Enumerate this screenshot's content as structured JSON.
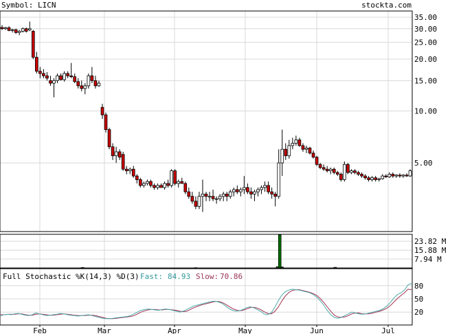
{
  "header": {
    "symbol_label": "Symbol: LICN",
    "brand": "stockta.com"
  },
  "colors": {
    "background": "#ffffff",
    "grid": "#d8d8d8",
    "frame": "#000000",
    "up_candle_fill": "#ffffff",
    "down_candle_fill": "#cc0000",
    "volume_bar": "#006600",
    "fast_line": "#4aa8a8",
    "slow_line": "#a03050",
    "fast_label": "#339999",
    "slow_label": "#993355"
  },
  "chart_data": [
    {
      "type": "candlestick",
      "title": "",
      "scale": "log",
      "ylim": [
        2.0,
        38.0
      ],
      "y_ticks": [
        35,
        30,
        25,
        20,
        15,
        10,
        5
      ],
      "y_tick_labels": [
        "35.00",
        "30.00",
        "25.00",
        "20.00",
        "15.00",
        "10.00",
        "5.00"
      ],
      "x_labels": [
        "Feb",
        "Mar",
        "Apr",
        "May",
        "Jun",
        "Jul"
      ],
      "grid": true,
      "candles": [
        [
          30.5,
          31.5,
          29.5,
          30.0
        ],
        [
          30.0,
          30.8,
          29.5,
          30.4
        ],
        [
          30.4,
          31.0,
          29.0,
          29.3
        ],
        [
          29.3,
          30.0,
          28.5,
          29.6
        ],
        [
          29.6,
          30.0,
          28.0,
          28.5
        ],
        [
          28.5,
          29.5,
          27.5,
          29.0
        ],
        [
          29.0,
          30.5,
          28.5,
          30.0
        ],
        [
          30.0,
          30.5,
          28.5,
          29.0
        ],
        [
          29.5,
          33.0,
          29.0,
          30.0
        ],
        [
          29.0,
          29.5,
          20.0,
          20.5
        ],
        [
          20.5,
          22.0,
          16.5,
          17.0
        ],
        [
          17.0,
          18.0,
          15.5,
          16.5
        ],
        [
          16.5,
          17.5,
          15.5,
          16.0
        ],
        [
          16.0,
          16.8,
          15.0,
          15.5
        ],
        [
          15.0,
          16.0,
          14.0,
          14.5
        ],
        [
          14.5,
          15.5,
          12.0,
          15.0
        ],
        [
          15.0,
          16.5,
          14.5,
          16.0
        ],
        [
          16.0,
          16.5,
          15.0,
          15.2
        ],
        [
          15.2,
          17.0,
          14.8,
          16.5
        ],
        [
          16.5,
          17.0,
          15.5,
          16.0
        ],
        [
          16.0,
          19.0,
          15.5,
          15.8
        ],
        [
          15.8,
          16.5,
          14.5,
          14.8
        ],
        [
          14.8,
          15.5,
          13.5,
          14.0
        ],
        [
          14.0,
          15.0,
          13.0,
          13.5
        ],
        [
          13.5,
          14.5,
          12.5,
          14.0
        ],
        [
          14.0,
          16.5,
          13.5,
          16.0
        ],
        [
          16.0,
          18.0,
          14.5,
          15.0
        ],
        [
          15.0,
          16.0,
          13.5,
          14.0
        ],
        [
          14.0,
          15.0,
          13.8,
          14.5
        ],
        [
          10.5,
          11.0,
          9.0,
          9.5
        ],
        [
          9.5,
          9.8,
          7.5,
          7.8
        ],
        [
          7.8,
          8.0,
          6.0,
          6.2
        ],
        [
          6.2,
          6.5,
          5.2,
          5.5
        ],
        [
          5.5,
          6.2,
          5.0,
          5.8
        ],
        [
          5.8,
          6.0,
          5.2,
          5.4
        ],
        [
          5.6,
          5.8,
          4.5,
          4.6
        ],
        [
          4.6,
          4.8,
          4.3,
          4.5
        ],
        [
          4.5,
          4.7,
          4.3,
          4.6
        ],
        [
          4.6,
          4.8,
          4.1,
          4.2
        ],
        [
          4.2,
          4.3,
          3.8,
          4.0
        ],
        [
          4.0,
          4.1,
          3.6,
          3.7
        ],
        [
          3.7,
          3.9,
          3.6,
          3.8
        ],
        [
          3.8,
          4.0,
          3.7,
          3.9
        ],
        [
          3.9,
          4.0,
          3.6,
          3.7
        ],
        [
          3.7,
          3.8,
          3.5,
          3.6
        ],
        [
          3.6,
          3.8,
          3.5,
          3.7
        ],
        [
          3.7,
          3.8,
          3.6,
          3.6
        ],
        [
          3.6,
          3.9,
          3.5,
          3.8
        ],
        [
          3.8,
          4.0,
          3.6,
          3.7
        ],
        [
          3.7,
          4.6,
          3.6,
          4.5
        ],
        [
          4.5,
          4.6,
          3.7,
          3.8
        ],
        [
          3.8,
          4.0,
          3.6,
          3.9
        ],
        [
          3.9,
          4.1,
          3.8,
          3.8
        ],
        [
          3.8,
          3.9,
          3.3,
          3.4
        ],
        [
          3.4,
          3.6,
          3.1,
          3.2
        ],
        [
          3.2,
          3.4,
          2.9,
          3.0
        ],
        [
          3.0,
          3.2,
          2.7,
          2.8
        ],
        [
          2.8,
          3.4,
          2.7,
          3.2
        ],
        [
          3.2,
          4.0,
          2.6,
          3.3
        ],
        [
          3.3,
          3.4,
          3.0,
          3.2
        ],
        [
          3.2,
          3.4,
          3.0,
          3.2
        ],
        [
          3.2,
          3.5,
          3.0,
          3.1
        ],
        [
          3.1,
          3.2,
          2.9,
          3.1
        ],
        [
          3.1,
          3.3,
          3.0,
          3.2
        ],
        [
          3.2,
          3.4,
          3.0,
          3.3
        ],
        [
          3.3,
          3.4,
          3.0,
          3.2
        ],
        [
          3.2,
          3.5,
          3.1,
          3.4
        ],
        [
          3.4,
          3.6,
          3.2,
          3.5
        ],
        [
          3.5,
          3.7,
          3.3,
          3.4
        ],
        [
          3.4,
          3.6,
          3.2,
          3.5
        ],
        [
          3.5,
          4.2,
          3.3,
          3.6
        ],
        [
          3.6,
          3.8,
          3.3,
          3.4
        ],
        [
          3.4,
          3.6,
          3.1,
          3.3
        ],
        [
          3.3,
          3.5,
          3.0,
          3.4
        ],
        [
          3.4,
          3.6,
          3.2,
          3.5
        ],
        [
          3.5,
          3.7,
          3.3,
          3.6
        ],
        [
          3.6,
          3.9,
          3.4,
          3.7
        ],
        [
          3.7,
          3.9,
          3.3,
          3.4
        ],
        [
          3.4,
          3.6,
          3.1,
          3.3
        ],
        [
          3.3,
          3.4,
          2.8,
          3.2
        ],
        [
          3.2,
          6.0,
          3.1,
          5.0
        ],
        [
          5.0,
          7.8,
          4.2,
          6.0
        ],
        [
          6.0,
          6.5,
          5.2,
          5.5
        ],
        [
          5.5,
          6.8,
          5.3,
          6.3
        ],
        [
          6.3,
          7.0,
          6.0,
          6.5
        ],
        [
          6.5,
          7.2,
          6.3,
          6.8
        ],
        [
          6.8,
          7.0,
          6.2,
          6.3
        ],
        [
          6.3,
          6.5,
          5.8,
          6.0
        ],
        [
          6.0,
          6.3,
          5.7,
          6.1
        ],
        [
          6.1,
          6.2,
          5.6,
          5.7
        ],
        [
          5.7,
          5.9,
          5.3,
          5.4
        ],
        [
          5.4,
          5.5,
          4.8,
          4.9
        ],
        [
          4.9,
          5.0,
          4.6,
          4.7
        ],
        [
          4.7,
          4.9,
          4.5,
          4.6
        ],
        [
          4.6,
          4.8,
          4.4,
          4.5
        ],
        [
          4.5,
          4.7,
          4.3,
          4.6
        ],
        [
          4.6,
          4.7,
          4.3,
          4.4
        ],
        [
          4.4,
          4.5,
          4.2,
          4.3
        ],
        [
          4.3,
          4.4,
          3.9,
          4.0
        ],
        [
          4.0,
          5.1,
          3.9,
          4.9
        ],
        [
          4.9,
          5.0,
          4.3,
          4.4
        ],
        [
          4.4,
          4.6,
          4.3,
          4.5
        ],
        [
          4.5,
          4.6,
          4.3,
          4.4
        ],
        [
          4.4,
          4.5,
          4.2,
          4.3
        ],
        [
          4.3,
          4.4,
          4.1,
          4.2
        ],
        [
          4.2,
          4.3,
          4.0,
          4.1
        ],
        [
          4.1,
          4.2,
          3.9,
          4.0
        ],
        [
          4.0,
          4.2,
          3.9,
          4.1
        ],
        [
          4.1,
          4.2,
          3.9,
          4.0
        ],
        [
          4.0,
          4.1,
          3.9,
          4.05
        ],
        [
          4.05,
          4.3,
          4.0,
          4.2
        ],
        [
          4.2,
          4.3,
          4.1,
          4.15
        ],
        [
          4.15,
          4.4,
          4.1,
          4.3
        ],
        [
          4.3,
          4.4,
          4.1,
          4.2
        ],
        [
          4.2,
          4.3,
          4.1,
          4.25
        ],
        [
          4.25,
          4.35,
          4.1,
          4.2
        ],
        [
          4.2,
          4.3,
          4.1,
          4.25
        ],
        [
          4.25,
          4.35,
          4.15,
          4.2
        ],
        [
          4.2,
          4.6,
          4.15,
          4.5
        ]
      ]
    },
    {
      "type": "bar",
      "title": "",
      "series_name": "Volume",
      "y_tick_labels": [
        "23.82 M",
        "15.88 M",
        "7.94 M"
      ],
      "ylim": [
        0,
        30
      ],
      "spikes": [
        {
          "index": 36,
          "value": 0.5
        },
        {
          "index": 87,
          "value": 0.3
        },
        {
          "index": 124,
          "value": 1.2
        },
        {
          "index": 125,
          "value": 29.5
        },
        {
          "index": 126,
          "value": 1.0
        },
        {
          "index": 150,
          "value": 0.6
        }
      ],
      "bars_count": 186
    },
    {
      "type": "line",
      "title": "Full Stochastic %K(14,3) %D(3)",
      "fast_label": "Fast:",
      "fast_value": "84.93",
      "slow_label": "Slow:",
      "slow_value": "70.86",
      "ylim": [
        0,
        100
      ],
      "y_tick_labels": [
        "80",
        "50",
        "20"
      ],
      "series": [
        {
          "name": "Fast",
          "values": [
            12,
            14,
            15,
            14,
            16,
            17,
            15,
            13,
            12,
            14,
            18,
            16,
            14,
            12,
            13,
            14,
            15,
            17,
            16,
            14,
            13,
            12,
            11,
            12,
            13,
            14,
            12,
            10,
            8,
            6,
            5,
            5,
            6,
            7,
            8,
            9,
            10,
            12,
            16,
            20,
            24,
            26,
            27,
            26,
            25,
            24,
            26,
            27,
            26,
            24,
            22,
            20,
            22,
            26,
            30,
            34,
            36,
            38,
            40,
            42,
            44,
            45,
            43,
            40,
            34,
            28,
            24,
            22,
            23,
            26,
            30,
            32,
            30,
            26,
            22,
            16,
            14,
            18,
            30,
            45,
            58,
            66,
            70,
            72,
            71,
            70,
            68,
            66,
            64,
            60,
            54,
            46,
            36,
            24,
            14,
            8,
            6,
            8,
            12,
            16,
            20,
            18,
            16,
            15,
            16,
            18,
            20,
            22,
            24,
            28,
            34,
            42,
            52,
            60,
            64,
            70,
            82,
            85
          ]
        },
        {
          "name": "Slow",
          "values": [
            14,
            14,
            15,
            15,
            15,
            16,
            16,
            14,
            13,
            13,
            15,
            16,
            15,
            14,
            13,
            13,
            14,
            15,
            16,
            15,
            14,
            13,
            12,
            12,
            12,
            13,
            13,
            12,
            10,
            8,
            6,
            5,
            5,
            6,
            7,
            8,
            9,
            10,
            12,
            16,
            20,
            23,
            25,
            26,
            26,
            25,
            25,
            26,
            26,
            25,
            24,
            22,
            21,
            22,
            26,
            30,
            33,
            36,
            38,
            40,
            42,
            44,
            44,
            42,
            38,
            33,
            28,
            25,
            23,
            24,
            27,
            30,
            31,
            29,
            26,
            21,
            17,
            16,
            21,
            31,
            44,
            56,
            64,
            69,
            71,
            71,
            69,
            67,
            65,
            62,
            58,
            51,
            42,
            32,
            22,
            13,
            9,
            8,
            9,
            12,
            16,
            18,
            18,
            16,
            16,
            16,
            18,
            20,
            22,
            25,
            29,
            35,
            43,
            51,
            58,
            64,
            72,
            71
          ]
        }
      ]
    }
  ]
}
